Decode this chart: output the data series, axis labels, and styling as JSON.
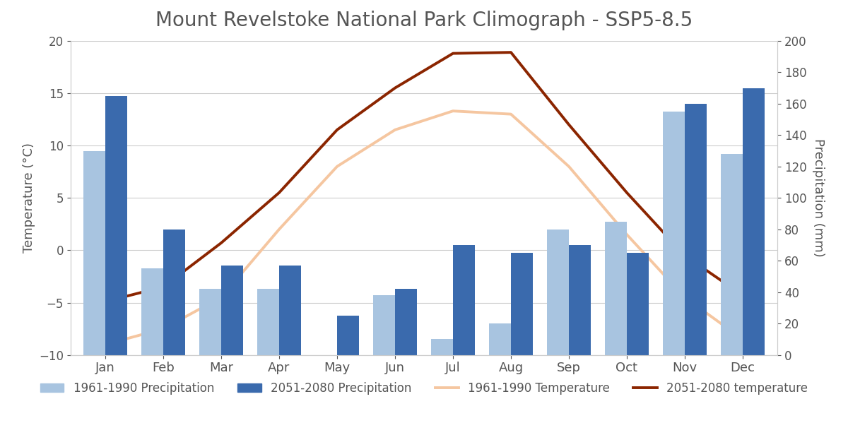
{
  "title": "Mount Revelstoke National Park Climograph - SSP5-8.5",
  "months": [
    "Jan",
    "Feb",
    "Mar",
    "Apr",
    "May",
    "Jun",
    "Jul",
    "Aug",
    "Sep",
    "Oct",
    "Nov",
    "Dec"
  ],
  "precip_1961_1990": [
    130,
    55,
    42,
    42,
    0,
    38,
    10,
    20,
    80,
    85,
    155,
    128
  ],
  "precip_2051_2080": [
    165,
    80,
    57,
    57,
    25,
    42,
    70,
    65,
    70,
    65,
    160,
    170
  ],
  "temp_1961_1990": [
    -9.0,
    -7.5,
    -4.5,
    2.0,
    8.0,
    11.5,
    13.3,
    13.0,
    8.0,
    1.5,
    -4.5,
    -8.5
  ],
  "temp_2051_2080": [
    -4.9,
    -3.5,
    0.7,
    5.5,
    11.5,
    15.5,
    18.8,
    18.9,
    12.0,
    5.5,
    -0.5,
    -4.3
  ],
  "color_precip_1961": "#a8c4e0",
  "color_precip_2051": "#3a6aad",
  "color_temp_1961": "#f5c6a0",
  "color_temp_2051": "#8b2500",
  "temp_ylim": [
    -10,
    20
  ],
  "precip_ylim": [
    0,
    200
  ],
  "temp_yticks": [
    -10,
    -5,
    0,
    5,
    10,
    15,
    20
  ],
  "precip_yticks": [
    0,
    20,
    40,
    60,
    80,
    100,
    120,
    140,
    160,
    180,
    200
  ],
  "ylabel_left": "Temperature (°C)",
  "ylabel_right": "Precipitation (mm)",
  "legend_labels": [
    "1961-1990 Precipitation",
    "2051-2080 Precipitation",
    "1961-1990 Temperature",
    "2051-2080 temperature"
  ],
  "background_color": "#ffffff",
  "title_fontsize": 20,
  "axis_fontsize": 13,
  "tick_fontsize": 12,
  "legend_fontsize": 12
}
